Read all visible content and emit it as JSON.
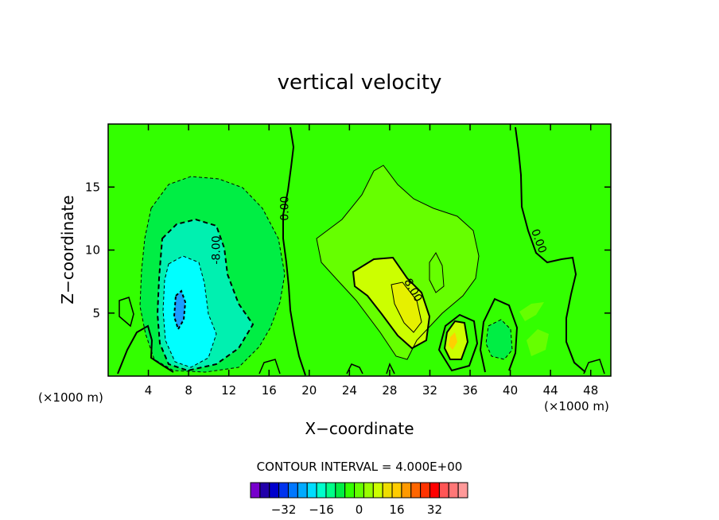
{
  "chart_data": {
    "type": "heatmap",
    "title": "vertical velocity",
    "xlabel": "X−coordinate",
    "ylabel": "Z−coordinate",
    "x_unit_left": "(×1000 m)",
    "x_unit_right": "(×1000 m)",
    "xlim": [
      0,
      50
    ],
    "ylim": [
      0,
      20
    ],
    "xticks": [
      4,
      8,
      12,
      16,
      20,
      24,
      28,
      32,
      36,
      40,
      44,
      48
    ],
    "yticks": [
      5,
      10,
      15
    ],
    "grid": false,
    "contour_interval_text": "CONTOUR INTERVAL = 4.000E+00",
    "contour_labels": [
      {
        "text": "0.00",
        "x": 17.6,
        "z": 13.3,
        "angle": -90
      },
      {
        "text": "-8.00",
        "x": 10.8,
        "z": 10.0,
        "angle": -90
      },
      {
        "text": "8.00",
        "x": 30.3,
        "z": 6.8,
        "angle": 60
      },
      {
        "text": "0.00",
        "x": 42.8,
        "z": 10.7,
        "angle": 70
      }
    ],
    "regions": [
      {
        "level": 0,
        "color": "#33ff00",
        "kind": "background"
      },
      {
        "level": -4,
        "color": "#00ee44",
        "kind": "cell",
        "name": "downdraft-outer"
      },
      {
        "level": -8,
        "color": "#00f0b0",
        "kind": "cell",
        "name": "downdraft-mid"
      },
      {
        "level": -12,
        "color": "#00ffff",
        "kind": "cell",
        "name": "downdraft-core"
      },
      {
        "level": -20,
        "color": "#1a9cff",
        "kind": "cell",
        "name": "downdraft-peak"
      },
      {
        "level": 4,
        "color": "#66ff00",
        "kind": "cell",
        "name": "updraft-outer"
      },
      {
        "level": 8,
        "color": "#ccff00",
        "kind": "cell",
        "name": "updraft-inner"
      },
      {
        "level": 12,
        "color": "#e6f000",
        "kind": "cell",
        "name": "updraft-peak"
      },
      {
        "level": 16,
        "color": "#ffd000",
        "kind": "cell",
        "name": "updraft-core"
      }
    ],
    "colorbar": {
      "colors": [
        "#7700cc",
        "#2200aa",
        "#0000cc",
        "#0033ee",
        "#0077ff",
        "#00aaff",
        "#00ddff",
        "#00ffcc",
        "#00ff88",
        "#00ee44",
        "#33ff00",
        "#66ff00",
        "#99ff00",
        "#ccff00",
        "#eedd00",
        "#ffcc00",
        "#ff9900",
        "#ff6600",
        "#ff3300",
        "#ff0000",
        "#ff5555",
        "#ff7777",
        "#ff9999"
      ],
      "tick_labels": [
        "−32",
        "−16",
        "0",
        "16",
        "32"
      ],
      "tick_values": [
        -32,
        -16,
        0,
        16,
        32
      ]
    }
  }
}
